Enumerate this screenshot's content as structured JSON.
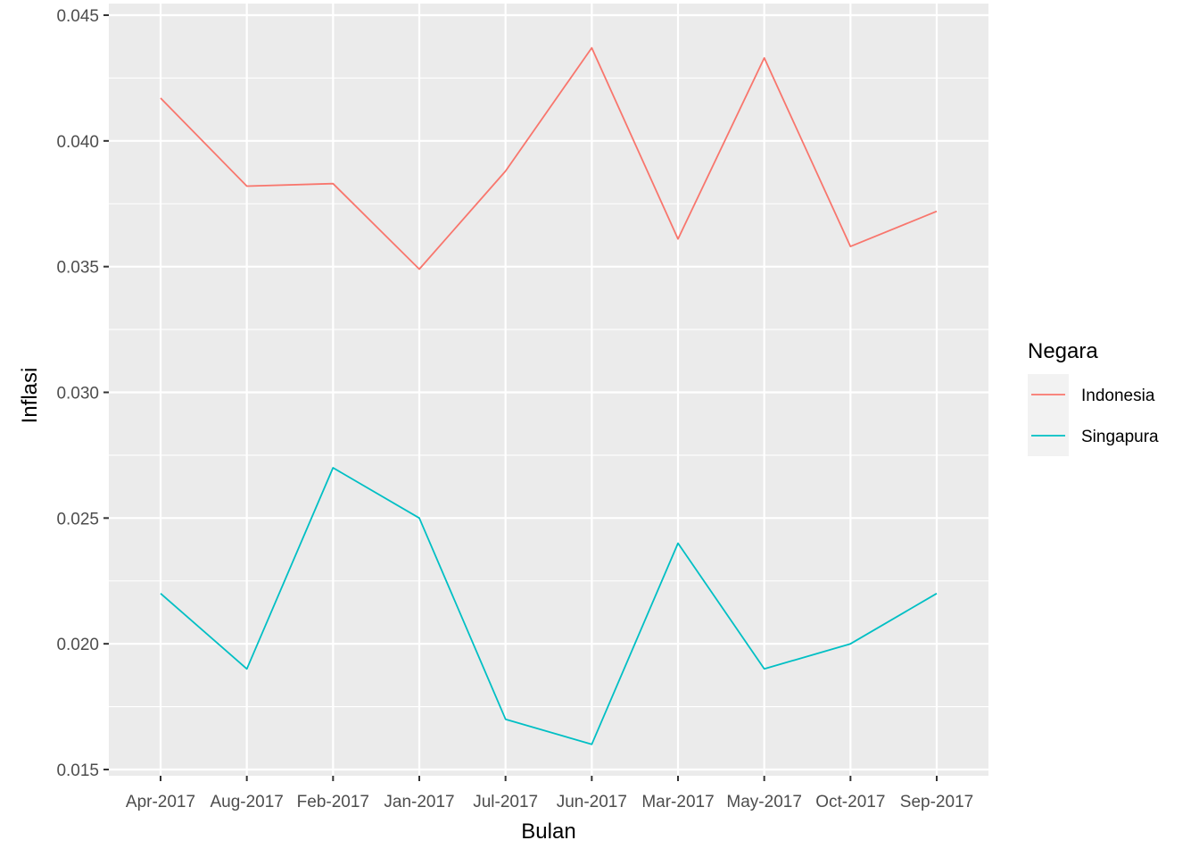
{
  "chart_data": {
    "type": "line",
    "xlabel": "Bulan",
    "ylabel": "Inflasi",
    "categories": [
      "Apr-2017",
      "Aug-2017",
      "Feb-2017",
      "Jan-2017",
      "Jul-2017",
      "Jun-2017",
      "Mar-2017",
      "May-2017",
      "Oct-2017",
      "Sep-2017"
    ],
    "ylim": [
      0.0147,
      0.045
    ],
    "yticks": [
      0.015,
      0.02,
      0.025,
      0.03,
      0.035,
      0.04,
      0.045
    ],
    "ytick_labels": [
      "0.015",
      "0.020",
      "0.025",
      "0.030",
      "0.035",
      "0.040",
      "0.045"
    ],
    "grid": true,
    "legend": {
      "title": "Negara",
      "position": "right"
    },
    "series": [
      {
        "name": "Indonesia",
        "color": "#F8766D",
        "values": [
          0.0417,
          0.0382,
          0.0383,
          0.0349,
          0.0388,
          0.0437,
          0.0361,
          0.0433,
          0.0358,
          0.0372
        ]
      },
      {
        "name": "Singapura",
        "color": "#00BFC4",
        "values": [
          0.022,
          0.019,
          0.027,
          0.025,
          0.017,
          0.016,
          0.024,
          0.019,
          0.02,
          0.022
        ]
      }
    ]
  }
}
